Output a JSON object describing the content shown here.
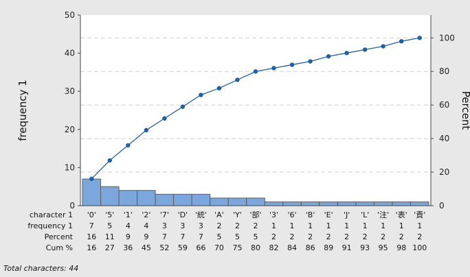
{
  "chart_data": {
    "type": "pareto",
    "categories": [
      "'0'",
      "'5'",
      "'1'",
      "'2'",
      "'7'",
      "'D'",
      "'統'",
      "'A'",
      "'Y'",
      "'部'",
      "'3'",
      "'6'",
      "'B'",
      "'E'",
      "'J'",
      "'L'",
      "'注'",
      "'表'",
      "'責'"
    ],
    "frequency": [
      7,
      5,
      4,
      4,
      3,
      3,
      3,
      2,
      2,
      2,
      1,
      1,
      1,
      1,
      1,
      1,
      1,
      1,
      1
    ],
    "percent": [
      16,
      11,
      9,
      9,
      7,
      7,
      7,
      5,
      5,
      5,
      2,
      2,
      2,
      2,
      2,
      2,
      2,
      2,
      2
    ],
    "cum_percent": [
      16,
      27,
      36,
      45,
      52,
      59,
      66,
      70,
      75,
      80,
      82,
      84,
      86,
      89,
      91,
      93,
      95,
      98,
      100
    ],
    "ylabel": "frequency 1",
    "y2label": "Percent",
    "ylim": [
      0,
      50
    ],
    "y2lim": [
      0,
      113.6
    ],
    "yticks": [
      0,
      10,
      20,
      30,
      40,
      50
    ],
    "y2ticks": [
      0,
      20,
      40,
      60,
      80,
      100
    ],
    "grid": true,
    "table_rows": {
      "categories": "character 1",
      "frequency": "frequency 1",
      "percent": "Percent",
      "cum_percent": "Cum %"
    },
    "colors": {
      "bar_fill": "#7ba7dd",
      "bar_stroke": "#5a5a5a",
      "line": "#1f5fa8",
      "marker": "#1f5fa8",
      "grid": "#cfcfcf",
      "plot_bg": "#ffffff",
      "page_bg": "#e8e8e8"
    }
  },
  "footer": "Total characters: 44"
}
